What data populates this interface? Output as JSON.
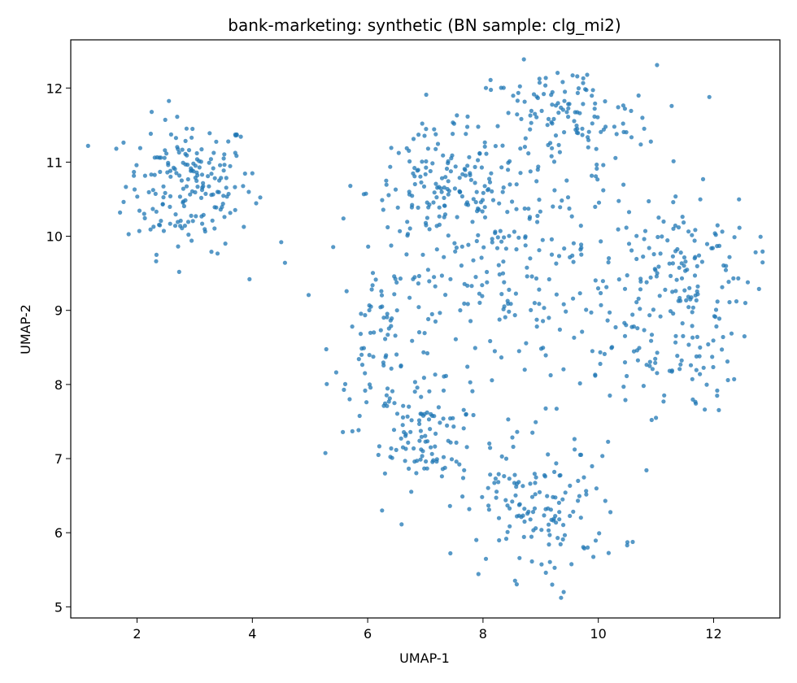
{
  "chart_data": {
    "type": "scatter",
    "title": "bank-marketing: synthetic (BN sample: clg_mi2)",
    "xlabel": "UMAP-1",
    "ylabel": "UMAP-2",
    "xlim": [
      0.85,
      13.15
    ],
    "ylim": [
      4.85,
      12.65
    ],
    "xticks": [
      2,
      4,
      6,
      8,
      10,
      12
    ],
    "yticks": [
      5,
      6,
      7,
      8,
      9,
      10,
      11,
      12
    ],
    "grid": false,
    "marker_color": "#1f77b4",
    "marker_alpha": 0.75,
    "clusters": [
      {
        "cx": 2.9,
        "cy": 10.7,
        "sx": 0.55,
        "sy": 0.45,
        "n": 190
      },
      {
        "cx": 7.0,
        "cy": 7.3,
        "sx": 0.4,
        "sy": 0.35,
        "n": 90
      },
      {
        "cx": 7.3,
        "cy": 10.6,
        "sx": 0.65,
        "sy": 0.4,
        "n": 140
      },
      {
        "cx": 6.4,
        "cy": 8.6,
        "sx": 0.5,
        "sy": 0.6,
        "n": 90
      },
      {
        "cx": 9.4,
        "cy": 11.6,
        "sx": 0.8,
        "sy": 0.35,
        "n": 130
      },
      {
        "cx": 11.4,
        "cy": 9.6,
        "sx": 0.65,
        "sy": 0.5,
        "n": 130
      },
      {
        "cx": 11.2,
        "cy": 8.3,
        "sx": 0.6,
        "sy": 0.35,
        "n": 70
      },
      {
        "cx": 9.0,
        "cy": 6.3,
        "sx": 0.7,
        "sy": 0.45,
        "n": 140
      },
      {
        "cx": 8.7,
        "cy": 9.5,
        "sx": 1.1,
        "sy": 0.9,
        "n": 220
      }
    ],
    "outliers": [
      [
        4.5,
        9.92
      ],
      [
        4.0,
        10.85
      ],
      [
        3.95,
        9.42
      ],
      [
        5.7,
        10.68
      ],
      [
        10.2,
        7.85
      ],
      [
        11.0,
        7.55
      ],
      [
        9.4,
        5.2
      ],
      [
        9.2,
        5.3
      ],
      [
        6.3,
        6.8
      ],
      [
        6.25,
        6.3
      ],
      [
        12.55,
        9.1
      ]
    ]
  }
}
